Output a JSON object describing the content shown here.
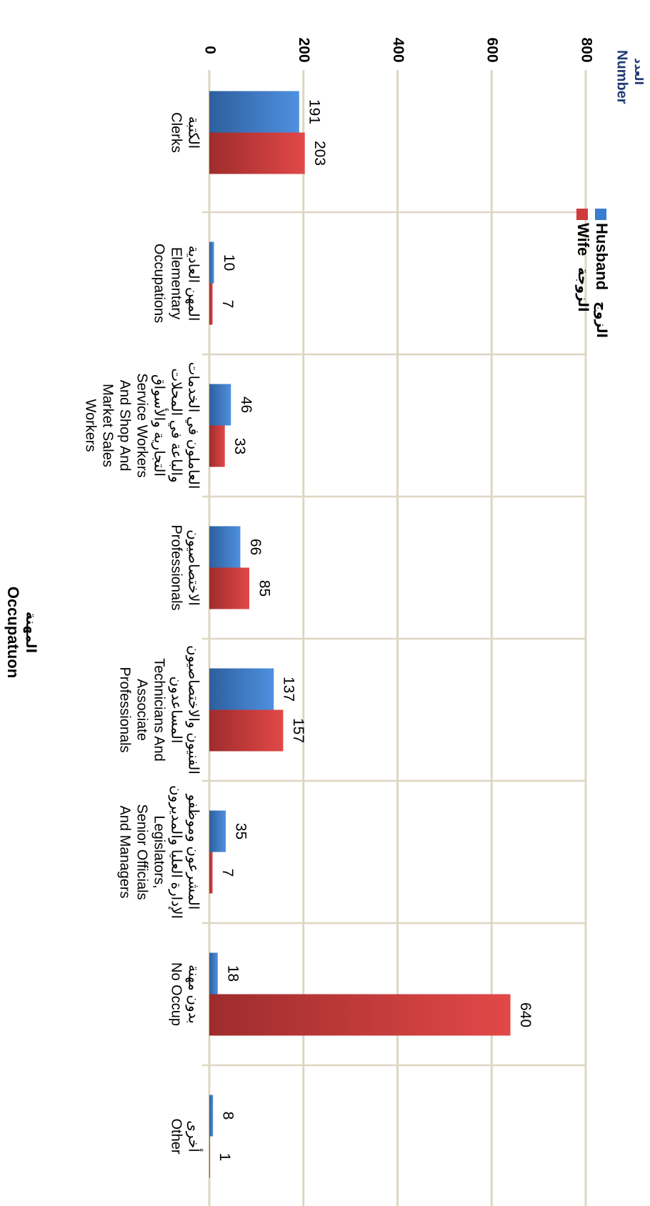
{
  "chart_data": {
    "type": "bar",
    "orientation": "rotated-90-clockwise",
    "title": "",
    "ylabel": "Number",
    "ylabel_ar": "العدد",
    "xlabel": "Occupatuon",
    "xlabel_ar": "المهنة",
    "ylim": [
      0,
      800
    ],
    "yticks": [
      "0",
      "200",
      "400",
      "600",
      "800"
    ],
    "grid": true,
    "legend_position": "top",
    "categories": [
      {
        "en": [
          "Clerks"
        ],
        "ar": [
          "الكتبة"
        ]
      },
      {
        "en": [
          "Elementary",
          "Occupations"
        ],
        "ar": [
          "المهن العادية"
        ]
      },
      {
        "en": [
          "Service Workers",
          "And Shop And",
          "Market Sales",
          "Workers"
        ],
        "ar": [
          "العاملون في الخدمات",
          "والباعة في المحلات",
          "التجارية والأسواق"
        ]
      },
      {
        "en": [
          "Professionals"
        ],
        "ar": [
          "الاختصاصيون"
        ]
      },
      {
        "en": [
          "Technicians And",
          "Associate",
          "Professionals"
        ],
        "ar": [
          "الفنيون والاختصاصيون",
          "المساعدون"
        ]
      },
      {
        "en": [
          "Legislators,",
          "Senior Officials",
          "And Managers"
        ],
        "ar": [
          "المشرعون وموظفو",
          "الإدارة العليا والمديرون"
        ]
      },
      {
        "en": [
          "No Occup"
        ],
        "ar": [
          "بدون مهنة"
        ]
      },
      {
        "en": [
          "Other"
        ],
        "ar": [
          "أخرى"
        ]
      }
    ],
    "series": [
      {
        "name": "Husband",
        "name_ar": "الزوج",
        "color": "#3b7dd0",
        "values": [
          191,
          10,
          46,
          66,
          137,
          35,
          18,
          8
        ]
      },
      {
        "name": "Wife",
        "name_ar": "الزوجة",
        "color": "#d03b3b",
        "values": [
          203,
          7,
          33,
          85,
          157,
          7,
          640,
          1
        ]
      }
    ]
  }
}
